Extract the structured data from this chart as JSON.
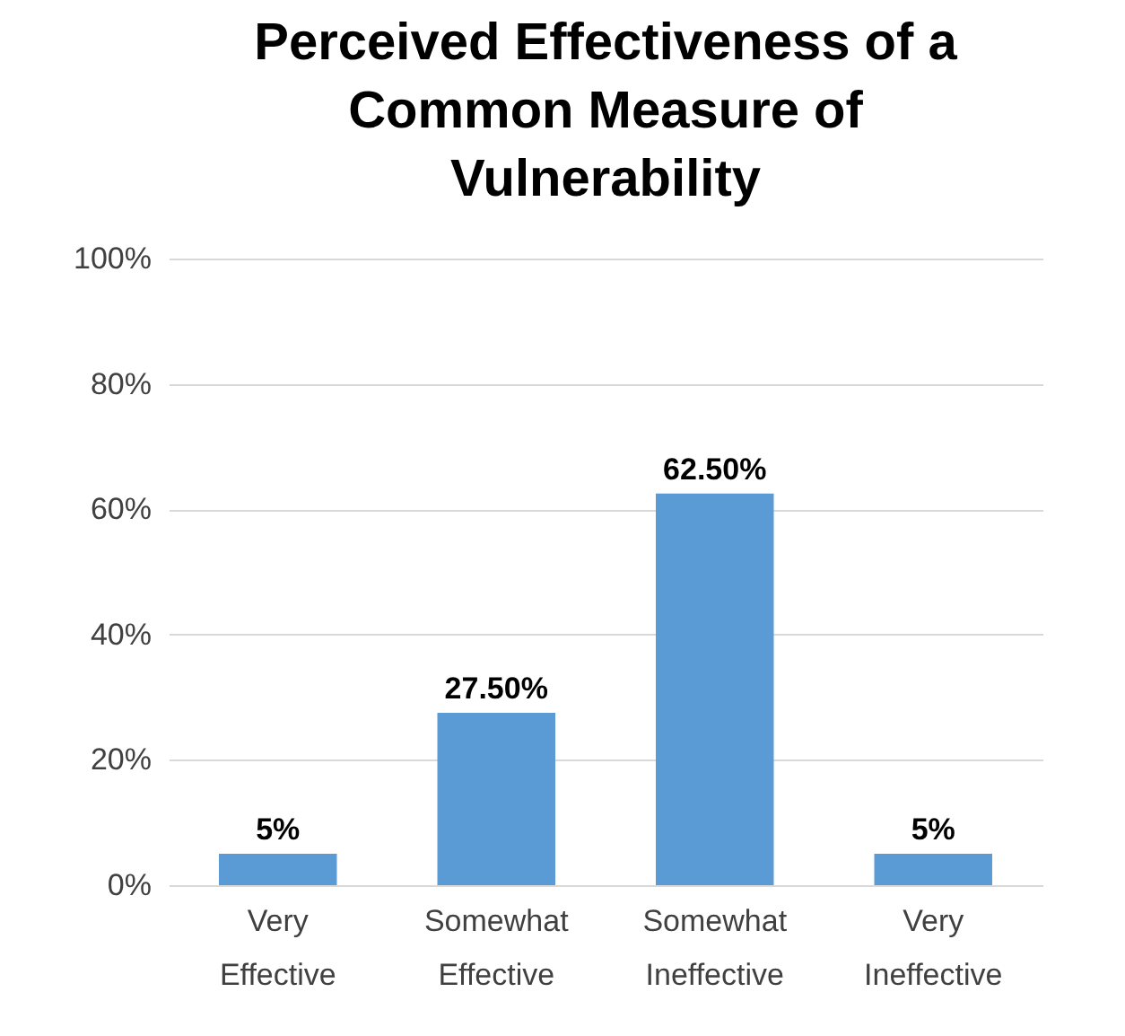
{
  "chart_data": {
    "type": "bar",
    "title": "Perceived Effectiveness of a Common Measure of Vulnerability",
    "categories": [
      "Very Effective",
      "Somewhat Effective",
      "Somewhat Ineffective",
      "Very Ineffective"
    ],
    "values": [
      5,
      27.5,
      62.5,
      5
    ],
    "value_labels": [
      "5%",
      "27.50%",
      "62.50%",
      "5%"
    ],
    "color": "#5b9bd5",
    "ylim": [
      0,
      100
    ],
    "yticks": [
      {
        "value": 0,
        "label": "0%"
      },
      {
        "value": 20,
        "label": "20%"
      },
      {
        "value": 40,
        "label": "40%"
      },
      {
        "value": 60,
        "label": "60%"
      },
      {
        "value": 80,
        "label": "80%"
      },
      {
        "value": 100,
        "label": "100%"
      }
    ],
    "grid": "y"
  }
}
